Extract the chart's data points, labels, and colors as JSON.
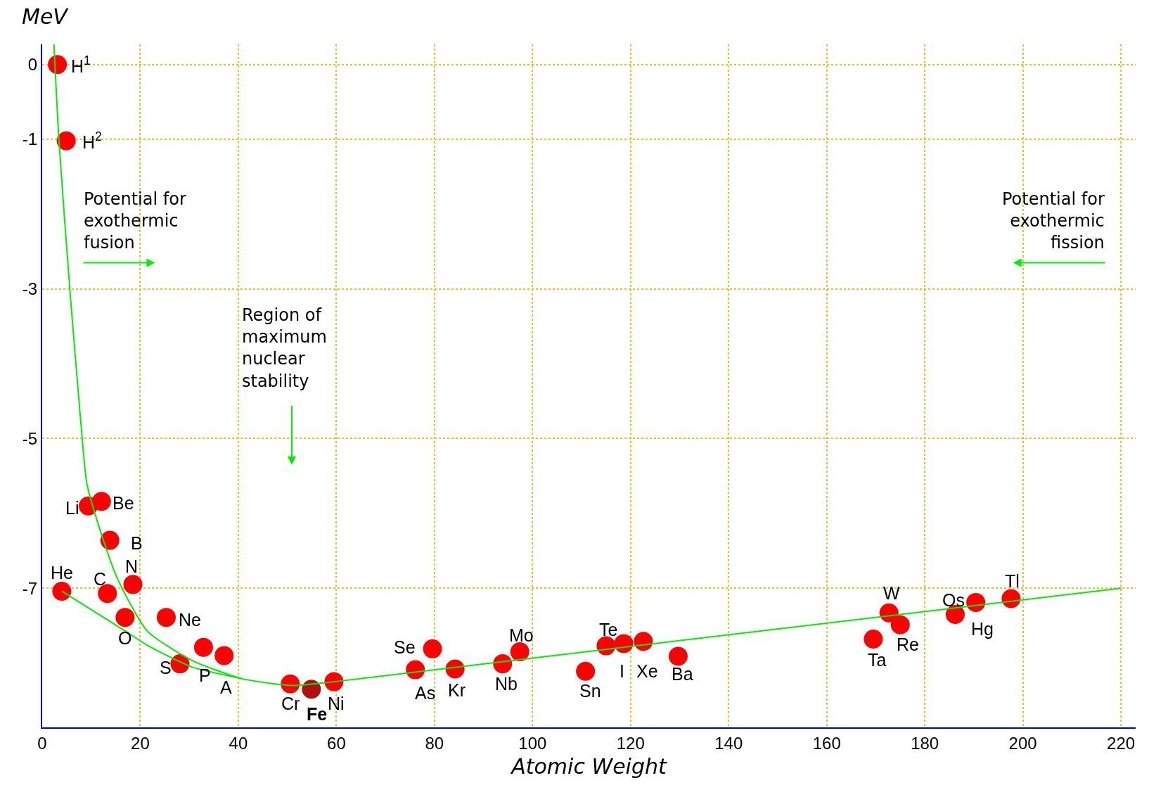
{
  "chart_data": {
    "type": "scatter",
    "xlabel": "Atomic Weight",
    "ylabel": "MeV",
    "xlim": [
      0,
      223
    ],
    "ylim": [
      -8.86,
      0.27
    ],
    "xticks": [
      0,
      20,
      40,
      60,
      80,
      100,
      120,
      140,
      160,
      180,
      200,
      220
    ],
    "yticks": [
      0,
      -1,
      -3,
      -5,
      -7
    ],
    "grid": true,
    "series": [
      {
        "marker": "circle",
        "color": "#ff0000",
        "colors": [
          "#ff0000",
          "#ff0000",
          "#ff0000",
          "#ff0000",
          "#ff0000",
          "#ff0000",
          "#ff0000",
          "#ff0000",
          "#ff0000",
          "#ff0000",
          "#ff0000",
          "#ff0000",
          "#ff0000",
          "#ff0000",
          "#b01010",
          "#ff0000",
          "#ff0000",
          "#ff0000",
          "#ff0000",
          "#ff0000",
          "#ff0000",
          "#ff0000",
          "#ff0000",
          "#ff0000",
          "#ff0000",
          "#ff0000",
          "#ff0000",
          "#ff0000",
          "#ff0000",
          "#ff0000",
          "#ff0000",
          "#ff0000"
        ],
        "x": [
          3.1,
          4.9,
          9.4,
          12.1,
          13.8,
          4.0,
          13.3,
          18.5,
          16.9,
          25.3,
          28.1,
          32.9,
          37.1,
          50.6,
          54.9,
          59.5,
          76.1,
          79.6,
          84.2,
          93.9,
          97.4,
          110.8,
          115.0,
          118.6,
          122.6,
          129.7,
          169.5,
          172.7,
          175.0,
          186.2,
          190.4,
          197.6
        ],
        "values": [
          0,
          -1.02,
          -5.9,
          -5.84,
          -6.36,
          -7.04,
          -7.07,
          -6.95,
          -7.39,
          -7.39,
          -8.01,
          -7.79,
          -7.9,
          -8.28,
          -8.35,
          -8.25,
          -8.09,
          -7.81,
          -8.08,
          -8.01,
          -7.85,
          -8.11,
          -7.77,
          -7.74,
          -7.71,
          -7.91,
          -7.68,
          -7.33,
          -7.49,
          -7.35,
          -7.19,
          -7.14
        ]
      },
      {
        "type": "line",
        "marker": "none",
        "line_style": "solid",
        "color": "#00ee00",
        "x": [
          2.4,
          3.4,
          5.7,
          7.9,
          9.1,
          11.7,
          15.4,
          21.4,
          30.4,
          40.8,
          51.3,
          59.5,
          220
        ],
        "values": [
          0.27,
          -1.0,
          -3.06,
          -4.8,
          -5.6,
          -6.2,
          -6.88,
          -7.57,
          -7.96,
          -8.21,
          -8.3,
          -8.25,
          -7.0
        ]
      },
      {
        "type": "line",
        "marker": "none",
        "line_style": "solid",
        "color": "#00ee00",
        "x": [
          4.0,
          16.9,
          21.4,
          30.4,
          40.8
        ],
        "values": [
          -7.04,
          -7.57,
          -7.76,
          -8.05,
          -8.21
        ]
      }
    ],
    "annotations": [
      {
        "text": "H$^{1}$",
        "x": 3.1,
        "y": 0
      },
      {
        "text": "H$^{2}$",
        "x": 4.9,
        "y": -1.02
      },
      {
        "text": "Li",
        "x": 9.4,
        "y": -5.9
      },
      {
        "text": "Be",
        "x": 12.1,
        "y": -5.84
      },
      {
        "text": "B",
        "x": 13.8,
        "y": -6.36
      },
      {
        "text": "He",
        "x": 4.0,
        "y": -7.04
      },
      {
        "text": "C",
        "x": 13.3,
        "y": -7.07
      },
      {
        "text": "N",
        "x": 18.5,
        "y": -6.95
      },
      {
        "text": "O",
        "x": 16.9,
        "y": -7.39
      },
      {
        "text": "Ne",
        "x": 25.3,
        "y": -7.39
      },
      {
        "text": "S",
        "x": 28.1,
        "y": -8.01
      },
      {
        "text": "P",
        "x": 32.9,
        "y": -7.79
      },
      {
        "text": "A",
        "x": 37.1,
        "y": -7.9
      },
      {
        "text": "Cr",
        "x": 50.6,
        "y": -8.28
      },
      {
        "text": "Fe",
        "x": 54.9,
        "y": -8.35
      },
      {
        "text": "Ni",
        "x": 59.5,
        "y": -8.25
      },
      {
        "text": "As",
        "x": 76.1,
        "y": -8.09
      },
      {
        "text": "Se",
        "x": 79.6,
        "y": -7.81
      },
      {
        "text": "Kr",
        "x": 84.2,
        "y": -8.08
      },
      {
        "text": "Nb",
        "x": 93.9,
        "y": -8.01
      },
      {
        "text": "Mo",
        "x": 97.4,
        "y": -7.85
      },
      {
        "text": "Sn",
        "x": 110.8,
        "y": -8.11
      },
      {
        "text": "Te",
        "x": 115.0,
        "y": -7.77
      },
      {
        "text": "I",
        "x": 118.6,
        "y": -7.74
      },
      {
        "text": "Xe",
        "x": 122.6,
        "y": -7.71
      },
      {
        "text": "Ba",
        "x": 129.7,
        "y": -7.91
      },
      {
        "text": "Ta",
        "x": 169.5,
        "y": -7.68
      },
      {
        "text": "W",
        "x": 172.7,
        "y": -7.33
      },
      {
        "text": "Re",
        "x": 175.0,
        "y": -7.49
      },
      {
        "text": "Hg",
        "x": 186.2,
        "y": -7.35
      },
      {
        "text": "Os",
        "x": 190.4,
        "y": -7.19
      },
      {
        "text": "Tl",
        "x": 197.6,
        "y": -7.14
      },
      "Potential for\nexothermic\nfusion",
      "Potential for\nexothermic\nfission",
      "Region of\nmaximum\nnuclear\nstability"
    ]
  }
}
